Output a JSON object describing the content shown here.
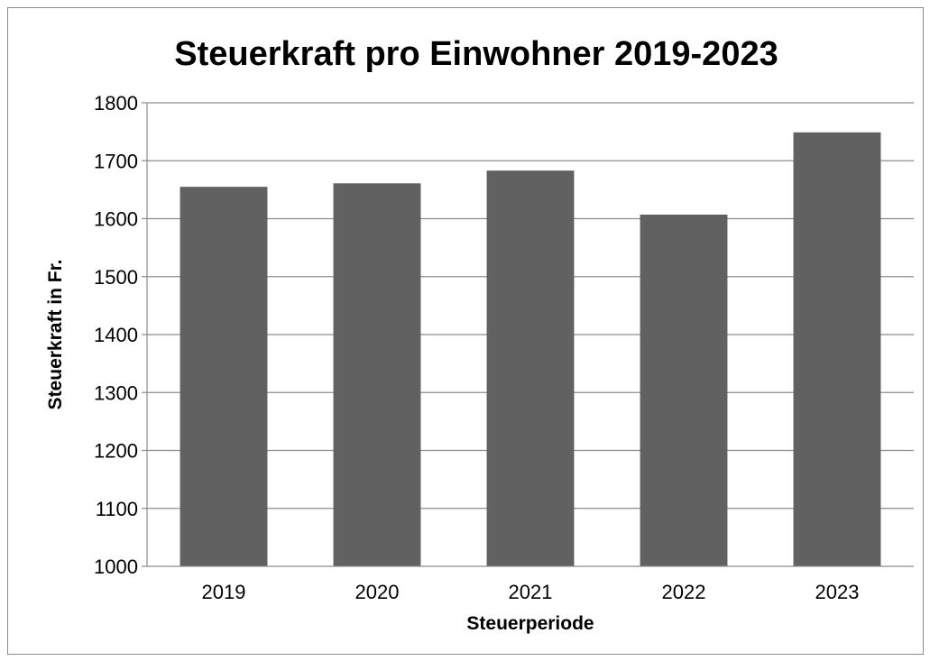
{
  "chart_data": {
    "type": "bar",
    "title": "Steuerkraft pro Einwohner 2019-2023",
    "xlabel": "Steuerperiode",
    "ylabel": "Steuerkraft in Fr.",
    "categories": [
      "2019",
      "2020",
      "2021",
      "2022",
      "2023"
    ],
    "values": [
      1655,
      1661,
      1683,
      1607,
      1749
    ],
    "ylim": [
      1000,
      1800
    ],
    "yticks": [
      1000,
      1100,
      1200,
      1300,
      1400,
      1500,
      1600,
      1700,
      1800
    ],
    "grid": true,
    "legend": "none",
    "colors": {
      "bar": "#616161",
      "grid": "#8c8c8c",
      "border": "#8c8c8c"
    }
  }
}
